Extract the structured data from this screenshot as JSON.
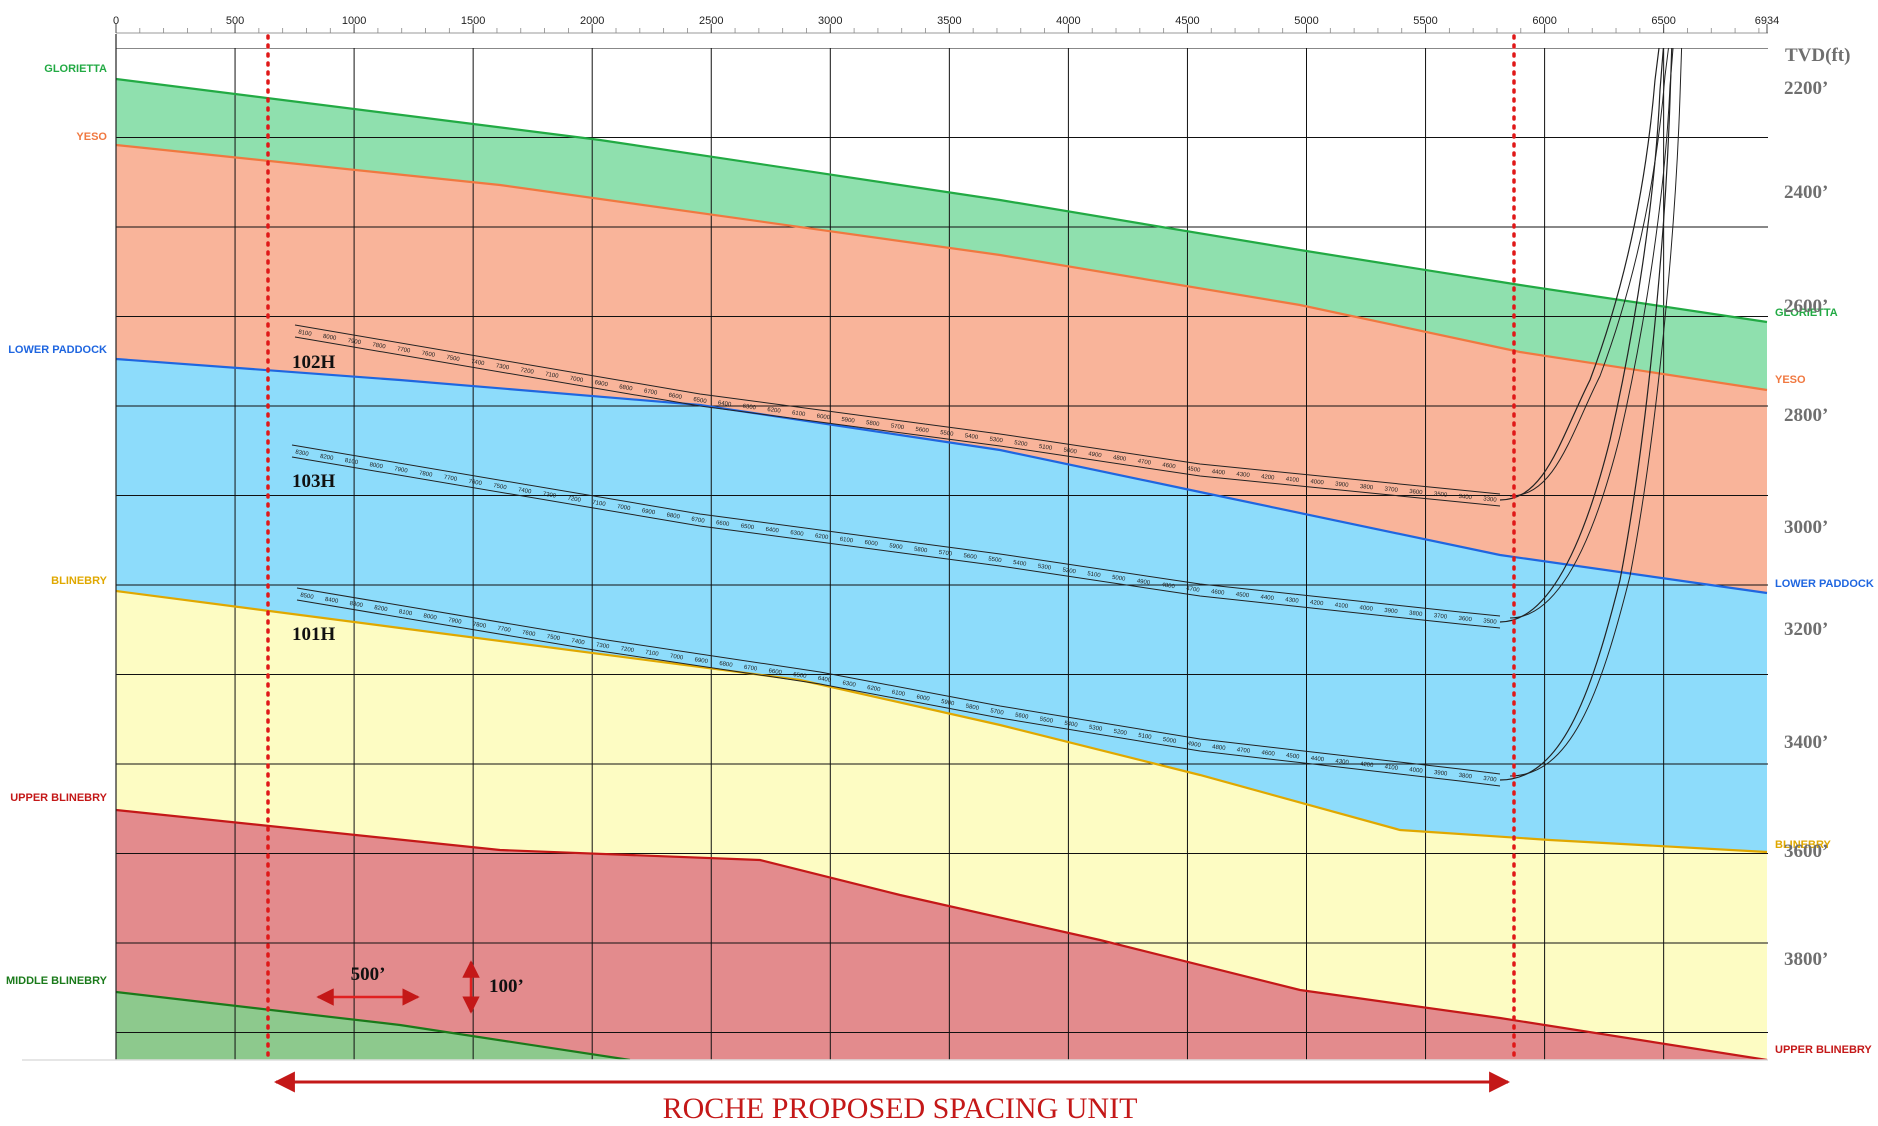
{
  "x_axis": {
    "ticks": [
      "0",
      "500",
      "1000",
      "1500",
      "2000",
      "2500",
      "3000",
      "3500",
      "4000",
      "4500",
      "5000",
      "5500",
      "6000",
      "6500",
      "6934"
    ]
  },
  "tvd_axis": {
    "title": "TVD(ft)",
    "labels": [
      "2200’",
      "2400’",
      "2600’",
      "2800’",
      "3000’",
      "3200’",
      "3400’",
      "3600’",
      "3800’"
    ]
  },
  "formations": [
    {
      "name": "GLORIETTA",
      "color": "#22aa44",
      "fill": "#8fe0ae"
    },
    {
      "name": "YESO",
      "color": "#f07840",
      "fill": "#f9b49a"
    },
    {
      "name": "LOWER PADDOCK",
      "color": "#1f66e0",
      "fill": "#8ddcfb"
    },
    {
      "name": "BLINEBRY",
      "color": "#e0a800",
      "fill": "#fdfcc3"
    },
    {
      "name": "UPPER BLINEBRY",
      "color": "#c41818",
      "fill": "#e38b8d"
    },
    {
      "name": "MIDDLE BLINEBRY",
      "color": "#1a7a1a",
      "fill": "#8dc98d"
    }
  ],
  "wells": [
    {
      "name": "102H",
      "md_labels": [
        "8100",
        "8000",
        "7900",
        "7800",
        "7700",
        "7600",
        "7500",
        "7400",
        "7300",
        "7200",
        "7100",
        "7000",
        "6900",
        "6800",
        "6700",
        "6600",
        "6500",
        "6400",
        "6300",
        "6200",
        "6100",
        "6000",
        "5900",
        "5800",
        "5700",
        "5600",
        "5500",
        "5400",
        "5300",
        "5200",
        "5100",
        "5000",
        "4900",
        "4800",
        "4700",
        "4600",
        "4500",
        "4400",
        "4300",
        "4200",
        "4100",
        "4000",
        "3900",
        "3800",
        "3700",
        "3600",
        "3500",
        "3400",
        "3300"
      ]
    },
    {
      "name": "103H",
      "md_labels": [
        "8300",
        "8200",
        "8100",
        "8000",
        "7900",
        "7800",
        "7700",
        "7600",
        "7500",
        "7400",
        "7300",
        "7200",
        "7100",
        "7000",
        "6900",
        "6800",
        "6700",
        "6600",
        "6500",
        "6400",
        "6300",
        "6200",
        "6100",
        "6000",
        "5900",
        "5800",
        "5700",
        "5600",
        "5500",
        "5400",
        "5300",
        "5200",
        "5100",
        "5000",
        "4900",
        "4800",
        "4700",
        "4600",
        "4500",
        "4400",
        "4300",
        "4200",
        "4100",
        "4000",
        "3900",
        "3800",
        "3700",
        "3600",
        "3500"
      ]
    },
    {
      "name": "101H",
      "md_labels": [
        "8500",
        "8400",
        "8300",
        "8200",
        "8100",
        "8000",
        "7900",
        "7800",
        "7700",
        "7600",
        "7500",
        "7400",
        "7300",
        "7200",
        "7100",
        "7000",
        "6900",
        "6800",
        "6700",
        "6600",
        "6500",
        "6400",
        "6300",
        "6200",
        "6100",
        "6000",
        "5900",
        "5800",
        "5700",
        "5600",
        "5500",
        "5400",
        "5300",
        "5200",
        "5100",
        "5000",
        "4900",
        "4800",
        "4700",
        "4600",
        "4500",
        "4400",
        "4300",
        "4200",
        "4100",
        "4000",
        "3900",
        "3800",
        "3700"
      ]
    }
  ],
  "scale_bar": {
    "horizontal": "500’",
    "vertical": "100’"
  },
  "spacing_unit": {
    "label": "ROCHE PROPOSED SPACING UNIT",
    "color": "#c41818"
  }
}
